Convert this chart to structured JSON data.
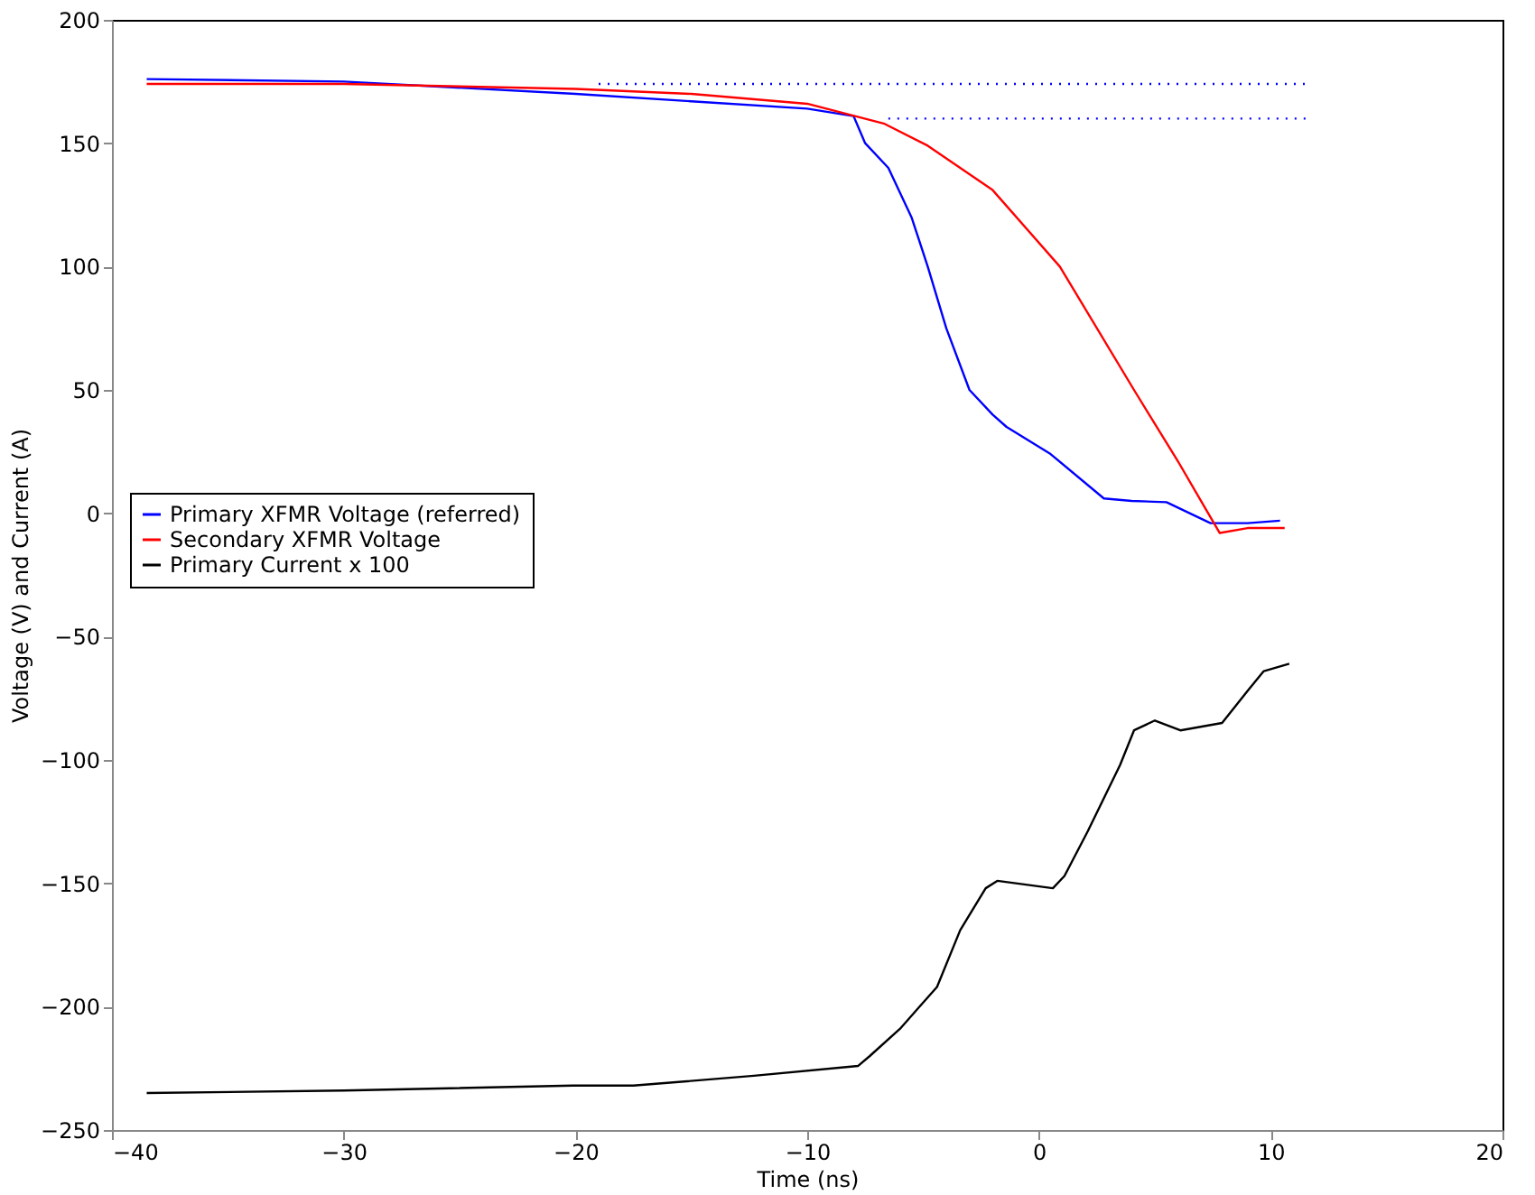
{
  "chart_data": {
    "type": "line",
    "xlabel": "Time (ns)",
    "ylabel": "Voltage (V) and Current (A)",
    "xlim": [
      -40,
      20
    ],
    "xticks": [
      -40,
      -30,
      -20,
      -10,
      0,
      10,
      20
    ],
    "ylim": [
      -250,
      200
    ],
    "yticks": [
      -250,
      -200,
      -150,
      -100,
      -50,
      0,
      50,
      100,
      150,
      200
    ],
    "grid": false,
    "legend": "left",
    "line_style": "solid",
    "series": [
      {
        "name": "Primary XFMR Voltage (referred)",
        "color": "#0000ff",
        "x": [
          -38.5,
          -30,
          -20,
          -15,
          -10,
          -8,
          -7.5,
          -6.5,
          -5.5,
          -4.8,
          -4,
          -3,
          -2,
          -1.4,
          0.5,
          2.8,
          4,
          5.5,
          7.4,
          9,
          10.4
        ],
        "values": [
          176,
          175,
          170,
          167,
          164,
          161,
          150,
          140,
          120,
          100,
          75,
          50,
          40,
          35,
          24,
          6,
          5,
          4.5,
          -4,
          -4,
          -3
        ]
      },
      {
        "name": "Secondary XFMR Voltage",
        "color": "#ff0000",
        "x": [
          -38.5,
          -30,
          -20,
          -15,
          -10,
          -6.7,
          -4.8,
          -2,
          0.9,
          4.1,
          6,
          7.3,
          7.8,
          9,
          10.6
        ],
        "values": [
          174,
          174,
          172,
          170,
          166,
          158,
          149,
          131,
          100,
          50,
          21,
          0,
          -8,
          -6,
          -6
        ]
      },
      {
        "name": "Primary Current x 100",
        "color": "#000000",
        "x": [
          -38.5,
          -30,
          -20.1,
          -17.5,
          -12.3,
          -7.8,
          -7.3,
          -6,
          -4.4,
          -3.4,
          -2.3,
          -1.8,
          0.6,
          1.1,
          2.1,
          3.5,
          4.1,
          5,
          6.1,
          7.9,
          9,
          9.7,
          10.8
        ],
        "values": [
          -235,
          -234,
          -232,
          -232,
          -228,
          -224,
          -220,
          -209,
          -192,
          -169,
          -152,
          -149,
          -152,
          -147,
          -129,
          -102,
          -88,
          -84,
          -88,
          -85,
          -72,
          -64,
          -61
        ]
      },
      {
        "color": "#0000ff",
        "line_style": "dotted",
        "x": [
          -19,
          11.7
        ],
        "values": [
          174,
          174
        ]
      },
      {
        "color": "#0000ff",
        "line_style": "dotted",
        "x": [
          -6.5,
          11.7
        ],
        "values": [
          160,
          160
        ]
      }
    ]
  }
}
